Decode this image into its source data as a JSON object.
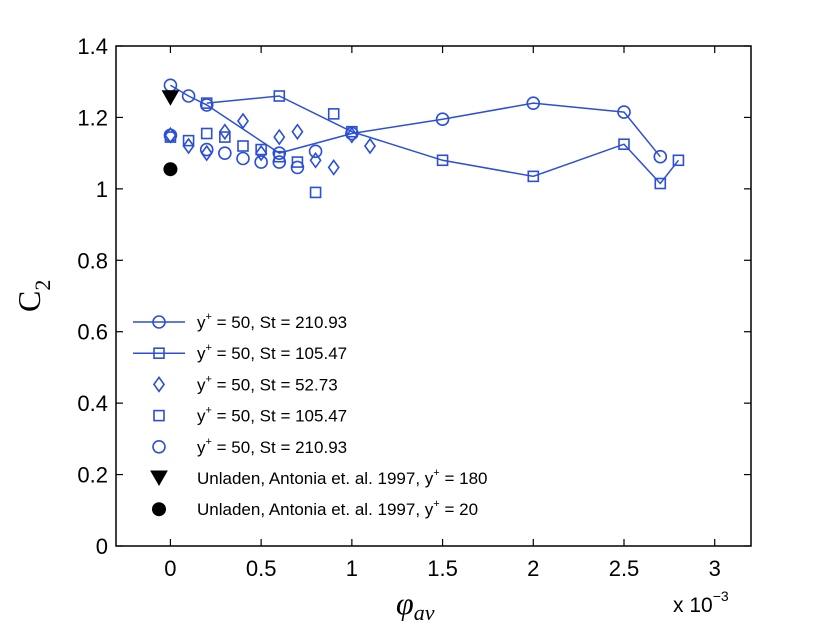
{
  "chart_data": {
    "type": "scatter",
    "title": "",
    "xlabel": {
      "symbol": "φ",
      "subscript": "av"
    },
    "ylabel": {
      "base": "C",
      "subscript": "2"
    },
    "xlim": [
      -0.3,
      3.2
    ],
    "ylim": [
      0,
      1.4
    ],
    "x_multiplier": {
      "prefix": "x 10",
      "exponent": "−3"
    },
    "xticks": [
      0,
      0.5,
      1,
      1.5,
      2,
      2.5,
      3
    ],
    "xtick_labels": [
      "0",
      "0.5",
      "1",
      "1.5",
      "2",
      "2.5",
      "3"
    ],
    "yticks": [
      0,
      0.2,
      0.4,
      0.6,
      0.8,
      1,
      1.2,
      1.4
    ],
    "ytick_labels": [
      "0",
      "0.2",
      "0.4",
      "0.6",
      "0.8",
      "1",
      "1.2",
      "1.4"
    ],
    "grid": false,
    "legend_position": "lower-left",
    "colors": {
      "blue": "#2b4fd8",
      "black": "#000000"
    },
    "series": [
      {
        "name": "y+ = 50, St = 210.93 (line)",
        "label": {
          "pre": "y",
          "sup": "+",
          "post": " = 50, St = 210.93"
        },
        "marker": "circle",
        "line": true,
        "color": "blue",
        "x": [
          0,
          0.1,
          0.2,
          0.6,
          1.0,
          1.5,
          2.0,
          2.5,
          2.7
        ],
        "y": [
          1.29,
          1.26,
          1.235,
          1.1,
          1.155,
          1.195,
          1.24,
          1.215,
          1.09
        ]
      },
      {
        "name": "y+ = 50, St = 105.47 (line)",
        "label": {
          "pre": "y",
          "sup": "+",
          "post": " = 50, St = 105.47"
        },
        "marker": "square",
        "line": true,
        "color": "blue",
        "x": [
          0.2,
          0.6,
          1.0,
          1.5,
          2.0,
          2.5,
          2.7,
          2.8
        ],
        "y": [
          1.24,
          1.26,
          1.16,
          1.08,
          1.035,
          1.125,
          1.015,
          1.08
        ]
      },
      {
        "name": "y+ = 50, St = 52.73",
        "label": {
          "pre": "y",
          "sup": "+",
          "post": " = 50, St = 52.73"
        },
        "marker": "diamond",
        "line": false,
        "color": "blue",
        "x": [
          0,
          0.1,
          0.2,
          0.3,
          0.4,
          0.5,
          0.6,
          0.7,
          0.8,
          0.9,
          1.0,
          1.1
        ],
        "y": [
          1.15,
          1.12,
          1.1,
          1.16,
          1.19,
          1.1,
          1.145,
          1.16,
          1.08,
          1.06,
          1.15,
          1.12
        ]
      },
      {
        "name": "y+ = 50, St = 105.47",
        "label": {
          "pre": "y",
          "sup": "+",
          "post": " = 50, St = 105.47"
        },
        "marker": "square",
        "line": false,
        "color": "blue",
        "x": [
          0,
          0.1,
          0.2,
          0.3,
          0.4,
          0.5,
          0.6,
          0.7,
          0.8,
          0.9
        ],
        "y": [
          1.145,
          1.135,
          1.155,
          1.145,
          1.12,
          1.11,
          1.09,
          1.075,
          0.99,
          1.21
        ]
      },
      {
        "name": "y+ = 50, St = 210.93",
        "label": {
          "pre": "y",
          "sup": "+",
          "post": " = 50, St = 210.93"
        },
        "marker": "circle",
        "line": false,
        "color": "blue",
        "x": [
          0,
          0.2,
          0.3,
          0.4,
          0.5,
          0.6,
          0.7,
          0.8
        ],
        "y": [
          1.15,
          1.11,
          1.1,
          1.085,
          1.075,
          1.075,
          1.06,
          1.105
        ]
      },
      {
        "name": "Unladen, Antonia et. al. 1997, y+ = 180",
        "label": {
          "pre": "Unladen, Antonia et. al. 1997, y",
          "sup": "+",
          "post": " = 180"
        },
        "marker": "triangle-down-filled",
        "line": false,
        "color": "black",
        "x": [
          0
        ],
        "y": [
          1.255
        ]
      },
      {
        "name": "Unladen, Antonia et. al. 1997, y+ = 20",
        "label": {
          "pre": "Unladen, Antonia et. al. 1997, y",
          "sup": "+",
          "post": " = 20"
        },
        "marker": "circle-filled",
        "line": false,
        "color": "black",
        "x": [
          0
        ],
        "y": [
          1.055
        ]
      }
    ]
  }
}
